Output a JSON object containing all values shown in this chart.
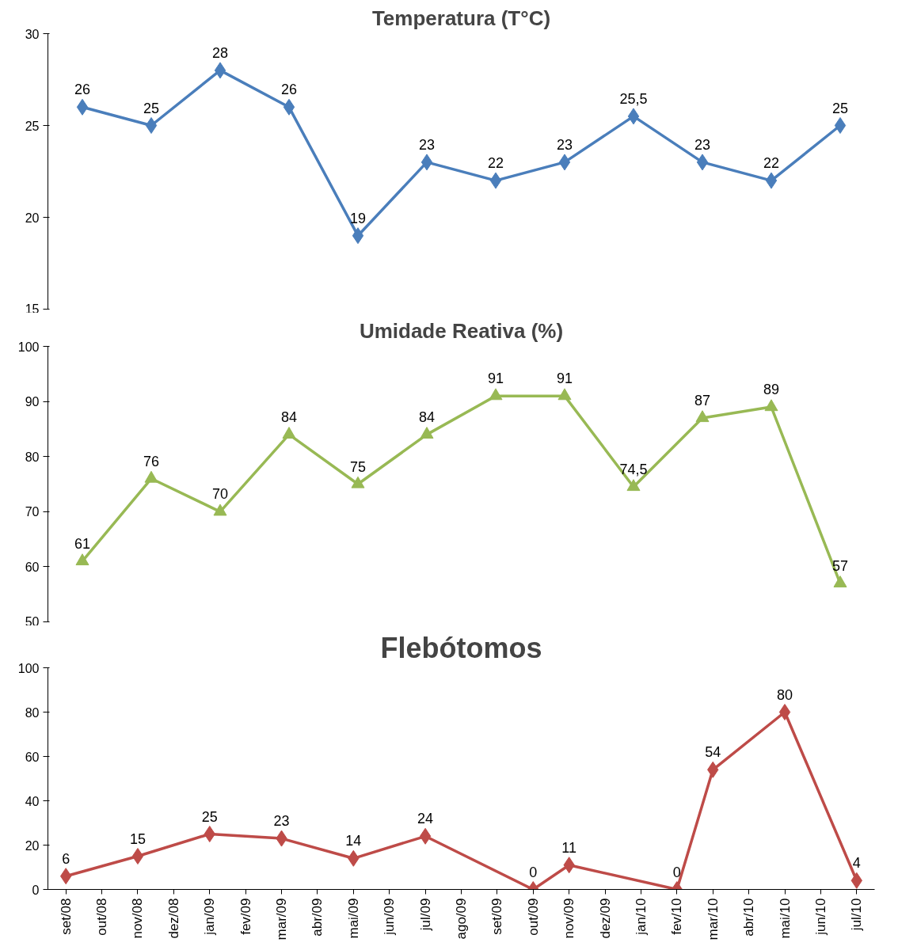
{
  "chart_data": [
    {
      "type": "line",
      "title": "Temperatura (T°C)",
      "categories": [
        null,
        null,
        null,
        null,
        null,
        null,
        null,
        null,
        null,
        null,
        null,
        null
      ],
      "series": [
        {
          "color": "#4a7ebb",
          "values": [
            26,
            25,
            28,
            26,
            19,
            23,
            22,
            23,
            25.5,
            23,
            22,
            25
          ],
          "value_labels": [
            "26",
            "25",
            "28",
            "26",
            "19",
            "23",
            "22",
            "23",
            "25,5",
            "23",
            "22",
            "25"
          ]
        }
      ],
      "ylim": [
        15,
        30
      ],
      "yticks": [
        15,
        20,
        25,
        30
      ],
      "grid": false,
      "marker": "diamond",
      "tick_labels": "y"
    },
    {
      "type": "line",
      "title": "Umidade Reativa (%)",
      "categories": [
        null,
        null,
        null,
        null,
        null,
        null,
        null,
        null,
        null,
        null,
        null,
        null
      ],
      "series": [
        {
          "color": "#98b954",
          "values": [
            61,
            76,
            70,
            84,
            75,
            84,
            91,
            91,
            74.5,
            87,
            89,
            57
          ],
          "value_labels": [
            "61",
            "76",
            "70",
            "84",
            "75",
            "84",
            "91",
            "91",
            "74,5",
            "87",
            "89",
            "57"
          ]
        }
      ],
      "ylim": [
        50,
        100
      ],
      "yticks": [
        50,
        60,
        70,
        80,
        90,
        100
      ],
      "grid": false,
      "marker": "triangle",
      "tick_labels": "y"
    },
    {
      "type": "line",
      "title": "Flebótomos",
      "categories": [
        "set/08",
        "out/08",
        "nov/08",
        "dez/08",
        "jan/09",
        "fev/09",
        "mar/09",
        "abr/09",
        "mai/09",
        "jun/09",
        "jul/09",
        "ago/09",
        "set/09",
        "out/09",
        "nov/09",
        "dez/09",
        "jan/10",
        "fev/10",
        "mar/10",
        "abr/10",
        "mai/10",
        "jun/10",
        "jul/10"
      ],
      "series": [
        {
          "color": "#be4b48",
          "values": [
            6,
            null,
            15,
            null,
            25,
            null,
            23,
            null,
            14,
            null,
            24,
            null,
            null,
            0,
            11,
            null,
            null,
            0,
            54,
            null,
            80,
            null,
            4
          ],
          "value_labels": [
            "6",
            null,
            "15",
            null,
            "25",
            null,
            "23",
            null,
            "14",
            null,
            "24",
            null,
            null,
            "0",
            "11",
            null,
            null,
            "0",
            "54",
            null,
            "80",
            null,
            "4"
          ]
        }
      ],
      "ylim": [
        0,
        100
      ],
      "yticks": [
        0,
        20,
        40,
        60,
        80,
        100
      ],
      "grid": false,
      "marker": "diamond"
    }
  ]
}
